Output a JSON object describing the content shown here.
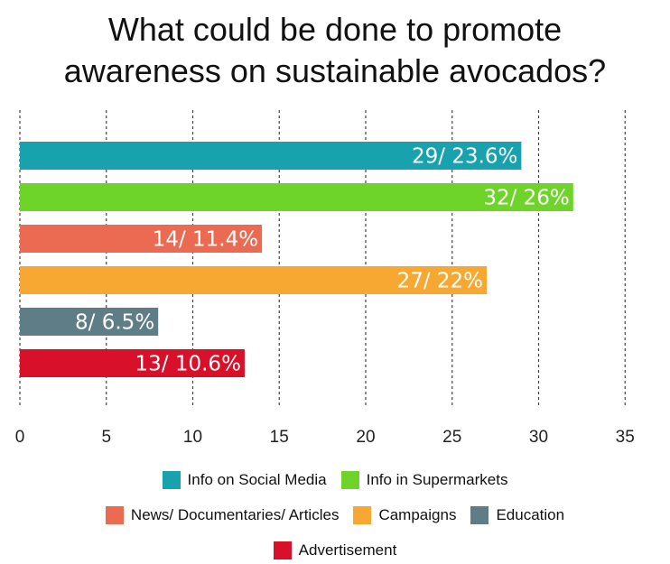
{
  "chart_data": {
    "type": "bar",
    "orientation": "horizontal",
    "title_lines": [
      "What could be done to promote",
      "awareness on sustainable avocados?"
    ],
    "categories": [
      "Info on Social Media",
      "Info in Supermarkets",
      "News/ Documentaries/ Articles",
      "Campaigns",
      "Education",
      "Advertisement"
    ],
    "values": [
      29,
      32,
      14,
      27,
      8,
      13
    ],
    "data_labels": [
      "29/ 23.6%",
      "32/ 26%",
      "14/ 11.4%",
      "27/ 22%",
      "8/ 6.5%",
      "13/ 10.6%"
    ],
    "colors": [
      "#17a2ad",
      "#6fd42a",
      "#ea6a52",
      "#f6a832",
      "#5f7d86",
      "#d8102a"
    ],
    "xlim": [
      0,
      35
    ],
    "xticks": [
      0,
      5,
      10,
      15,
      20,
      25,
      30,
      35
    ],
    "grid": "vertical-dashed",
    "legend_position": "bottom"
  }
}
